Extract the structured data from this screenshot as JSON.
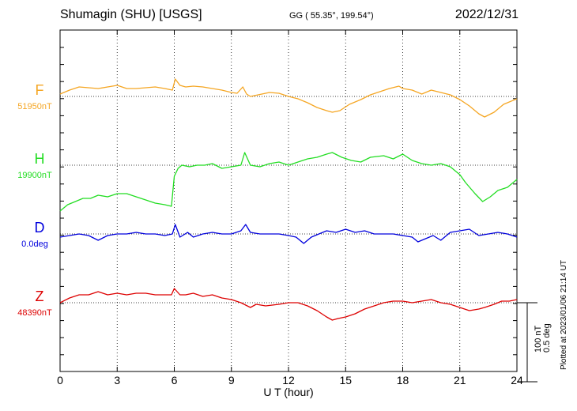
{
  "header": {
    "station": "Shumagin (SHU)  [USGS]",
    "coords": "GG ( 55.35°, 199.54°)",
    "date": "2022/12/31"
  },
  "chart_data": {
    "type": "line",
    "xlabel": "U T (hour)",
    "xlim": [
      0,
      24
    ],
    "xticks": [
      "0",
      "3",
      "6",
      "9",
      "12",
      "15",
      "18",
      "21",
      "24"
    ],
    "grid": "dotted horizontal baselines at vertical grid hours 3,6,9,12,15,18,21",
    "scale_bar": {
      "label1": "100 nT",
      "label2": "0.5 deg"
    },
    "plotted_note": "Plotted at 2023/01/06 21:14 UT",
    "series": [
      {
        "name": "F",
        "baseline_label": "51950nT",
        "color": "#f5a623",
        "x": [
          0,
          0.5,
          1,
          1.5,
          2,
          2.5,
          3,
          3.5,
          4,
          4.5,
          5,
          5.5,
          5.9,
          6.05,
          6.3,
          6.6,
          7,
          7.5,
          8,
          8.5,
          9,
          9.3,
          9.6,
          9.8,
          10,
          10.4,
          11,
          11.5,
          12,
          12.5,
          13,
          13.5,
          14,
          14.3,
          14.7,
          15.2,
          15.8,
          16.3,
          16.8,
          17.3,
          17.8,
          18,
          18.5,
          19,
          19.5,
          20,
          20.5,
          21,
          21.5,
          22,
          22.3,
          22.8,
          23.3,
          24
        ],
        "y": [
          3,
          8,
          12,
          11,
          10,
          12,
          14,
          10,
          10,
          11,
          12,
          10,
          8,
          22,
          14,
          12,
          13,
          12,
          10,
          8,
          5,
          4,
          12,
          3,
          0,
          2,
          5,
          4,
          0,
          -3,
          -8,
          -14,
          -18,
          -20,
          -18,
          -10,
          -4,
          2,
          6,
          10,
          13,
          10,
          8,
          3,
          8,
          5,
          2,
          -4,
          -12,
          -22,
          -26,
          -20,
          -10,
          -3
        ]
      },
      {
        "name": "H",
        "baseline_label": "19900nT",
        "color": "#22dd22",
        "x": [
          0,
          0.4,
          0.8,
          1.2,
          1.6,
          2,
          2.5,
          3,
          3.5,
          4,
          4.5,
          5,
          5.5,
          5.85,
          6.0,
          6.2,
          6.4,
          6.8,
          7.2,
          7.6,
          8,
          8.5,
          9,
          9.5,
          9.7,
          10,
          10.5,
          11,
          11.5,
          12,
          12.5,
          13,
          13.5,
          14,
          14.3,
          14.8,
          15.3,
          15.8,
          16.3,
          17,
          17.5,
          18,
          18.5,
          19,
          19.5,
          20,
          20.5,
          21,
          21.3,
          21.8,
          22.2,
          22.6,
          23,
          23.5,
          24
        ],
        "y": [
          -58,
          -50,
          -46,
          -42,
          -42,
          -38,
          -40,
          -36,
          -36,
          -40,
          -44,
          -48,
          -50,
          -52,
          -14,
          -4,
          0,
          -2,
          0,
          0,
          2,
          -4,
          -2,
          0,
          16,
          0,
          -2,
          2,
          4,
          0,
          4,
          8,
          10,
          14,
          16,
          10,
          6,
          4,
          10,
          12,
          8,
          14,
          6,
          2,
          0,
          2,
          -2,
          -12,
          -22,
          -36,
          -46,
          -40,
          -32,
          -28,
          -18
        ]
      },
      {
        "name": "D",
        "baseline_label": "0.0deg",
        "color": "#0000dd",
        "x": [
          0,
          0.5,
          1,
          1.5,
          2,
          2.5,
          3,
          3.5,
          4,
          4.5,
          5,
          5.5,
          5.9,
          6.05,
          6.3,
          6.7,
          7,
          7.5,
          8,
          8.5,
          9,
          9.5,
          9.75,
          10,
          10.5,
          11,
          11.5,
          12,
          12.4,
          12.8,
          13.2,
          13.6,
          14,
          14.5,
          15,
          15.5,
          16,
          16.5,
          17,
          17.5,
          18,
          18.5,
          18.8,
          19.2,
          19.6,
          20,
          20.5,
          21,
          21.5,
          22,
          22.5,
          23,
          23.5,
          24
        ],
        "y": [
          -4,
          -2,
          0,
          -2,
          -8,
          -2,
          0,
          0,
          2,
          0,
          0,
          -2,
          0,
          12,
          -4,
          2,
          -4,
          0,
          2,
          0,
          0,
          4,
          12,
          2,
          0,
          0,
          0,
          -2,
          -4,
          -12,
          -4,
          0,
          4,
          2,
          6,
          2,
          4,
          0,
          0,
          0,
          -2,
          -4,
          -10,
          -6,
          -2,
          -8,
          2,
          4,
          6,
          -2,
          0,
          2,
          0,
          -4
        ]
      },
      {
        "name": "Z",
        "baseline_label": "48390nT",
        "color": "#dd0000",
        "x": [
          0,
          0.5,
          1,
          1.5,
          2,
          2.5,
          3,
          3.5,
          4,
          4.5,
          5,
          5.5,
          5.85,
          6.0,
          6.3,
          6.6,
          7,
          7.5,
          8,
          8.5,
          9,
          9.5,
          10,
          10.3,
          10.8,
          11.5,
          12,
          12.5,
          13,
          13.5,
          14,
          14.3,
          14.6,
          15,
          15.5,
          16,
          16.5,
          17,
          17.5,
          18,
          18.5,
          19,
          19.5,
          20,
          20.5,
          21,
          21.5,
          22,
          22.3,
          22.8,
          23.2,
          23.6,
          24
        ],
        "y": [
          0,
          6,
          10,
          10,
          14,
          10,
          12,
          10,
          12,
          12,
          10,
          10,
          10,
          18,
          10,
          10,
          12,
          8,
          10,
          6,
          4,
          0,
          -6,
          -2,
          -4,
          -2,
          0,
          0,
          -4,
          -10,
          -18,
          -22,
          -20,
          -18,
          -14,
          -8,
          -4,
          0,
          2,
          2,
          0,
          2,
          4,
          0,
          -2,
          -6,
          -10,
          -8,
          -6,
          -2,
          2,
          2,
          4
        ]
      }
    ]
  }
}
